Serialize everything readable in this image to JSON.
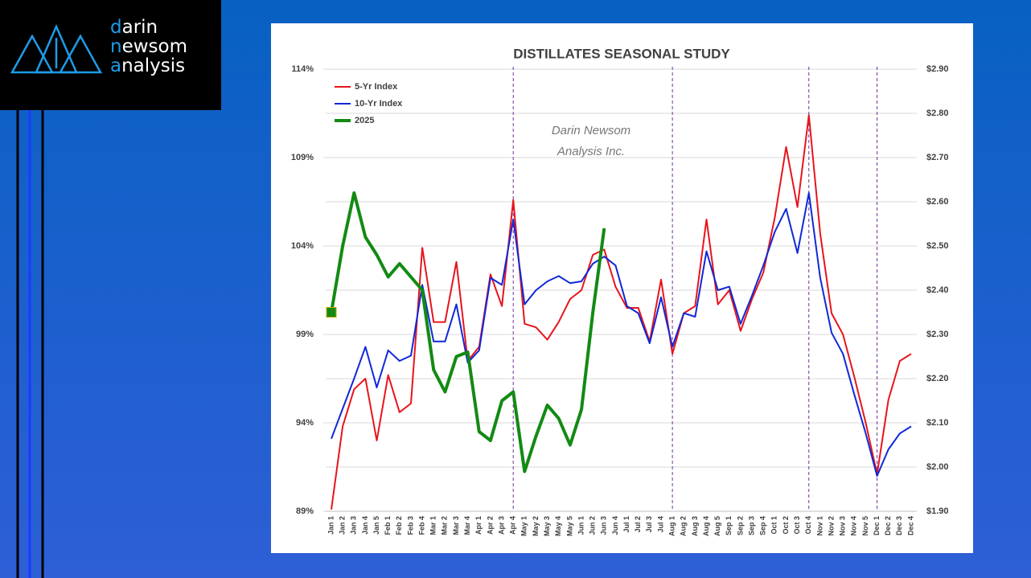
{
  "logo": [
    "darin",
    "newsom",
    "analysis"
  ],
  "chart_data": {
    "type": "line",
    "title": "DISTILLATES SEASONAL STUDY",
    "annotation": [
      "Darin Newsom",
      "Analysis Inc."
    ],
    "categories": [
      "Jan 1",
      "Jan 2",
      "Jan 3",
      "Jan 4",
      "Jan 5",
      "Feb 1",
      "Feb 2",
      "Feb 3",
      "Feb 4",
      "Mar 1",
      "Mar 2",
      "Mar 3",
      "Mar 4",
      "Apr 1",
      "Apr 2",
      "Apr 3",
      "Apr 4",
      "May 1",
      "May 2",
      "May 3",
      "May 4",
      "May 5",
      "Jun 1",
      "Jun 2",
      "Jun 3",
      "Jun 4",
      "Jul 1",
      "Jul 2",
      "Jul 3",
      "Jul 4",
      "Aug 1",
      "Aug 2",
      "Aug 3",
      "Aug 4",
      "Aug 5",
      "Sep 1",
      "Sep 2",
      "Sep 3",
      "Sep 4",
      "Oct 1",
      "Oct 2",
      "Oct 3",
      "Oct 4",
      "Nov 1",
      "Nov 2",
      "Nov 3",
      "Nov 4",
      "Nov 5",
      "Dec 1",
      "Dec 2",
      "Dec 3",
      "Dec 4"
    ],
    "series": [
      {
        "name": "5-Yr Index",
        "color": "#e8141c",
        "values": [
          89.1,
          93.8,
          95.9,
          96.5,
          93.0,
          96.7,
          94.6,
          95.1,
          103.9,
          99.7,
          99.7,
          103.1,
          97.5,
          98.3,
          102.4,
          100.6,
          106.6,
          99.6,
          99.4,
          98.7,
          99.7,
          101.0,
          101.5,
          103.5,
          103.8,
          101.7,
          100.5,
          100.5,
          98.6,
          102.1,
          97.9,
          100.2,
          100.6,
          105.5,
          100.7,
          101.5,
          99.2,
          101.0,
          102.5,
          105.6,
          109.6,
          106.2,
          111.4,
          104.7,
          100.2,
          99.0,
          96.6,
          94.0,
          91.1,
          95.3,
          97.5,
          97.9
        ]
      },
      {
        "name": "10-Yr Index",
        "color": "#1028d8",
        "values": [
          93.1,
          94.8,
          96.5,
          98.3,
          96.0,
          98.1,
          97.5,
          97.8,
          101.8,
          98.6,
          98.6,
          100.7,
          97.4,
          98.1,
          102.2,
          101.8,
          105.5,
          100.7,
          101.5,
          102.0,
          102.3,
          101.9,
          102.0,
          103.0,
          103.4,
          102.9,
          100.6,
          100.2,
          98.5,
          101.1,
          98.3,
          100.2,
          100.0,
          103.7,
          101.5,
          101.7,
          99.6,
          101.2,
          102.9,
          104.8,
          106.1,
          103.6,
          107.0,
          102.2,
          99.1,
          97.9,
          95.6,
          93.4,
          91.0,
          92.5,
          93.4,
          93.8
        ]
      },
      {
        "name": "2025",
        "color": "#138a13",
        "axis": "y2",
        "values": [
          2.35,
          2.5,
          2.62,
          2.52,
          2.48,
          2.43,
          2.46,
          2.43,
          2.4,
          2.22,
          2.17,
          2.25,
          2.26,
          2.08,
          2.06,
          2.15,
          2.17,
          1.99,
          2.07,
          2.14,
          2.11,
          2.05,
          2.13,
          2.35,
          2.54,
          null,
          null,
          null,
          null,
          null,
          null,
          null,
          null,
          null,
          null,
          null,
          null,
          null,
          null,
          null,
          null,
          null,
          null,
          null,
          null,
          null,
          null,
          null,
          null,
          null,
          null,
          null
        ]
      }
    ],
    "ylim": [
      89,
      114
    ],
    "yticks": [
      {
        "value": 89,
        "label": "89%"
      },
      {
        "value": 94,
        "label": "94%"
      },
      {
        "value": 99,
        "label": "99%"
      },
      {
        "value": 104,
        "label": "104%"
      },
      {
        "value": 109,
        "label": "109%"
      },
      {
        "value": 114,
        "label": "114%"
      }
    ],
    "y2lim": [
      1.9,
      2.9
    ],
    "y2ticks": [
      {
        "value": 1.9,
        "label": "$1.90"
      },
      {
        "value": 2.0,
        "label": "$2.00"
      },
      {
        "value": 2.1,
        "label": "$2.10"
      },
      {
        "value": 2.2,
        "label": "$2.20"
      },
      {
        "value": 2.3,
        "label": "$2.30"
      },
      {
        "value": 2.4,
        "label": "$2.40"
      },
      {
        "value": 2.5,
        "label": "$2.50"
      },
      {
        "value": 2.6,
        "label": "$2.60"
      },
      {
        "value": 2.7,
        "label": "$2.70"
      },
      {
        "value": 2.8,
        "label": "$2.80"
      },
      {
        "value": 2.9,
        "label": "$2.90"
      }
    ],
    "grid": true,
    "legend": "top-left"
  }
}
